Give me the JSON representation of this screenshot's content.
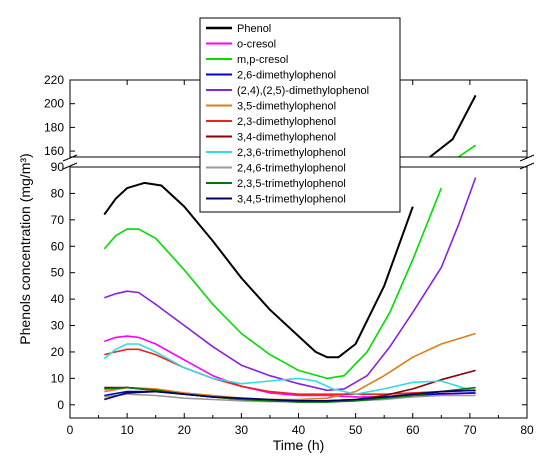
{
  "chart_data": {
    "type": "line",
    "xlabel": "Time (h)",
    "ylabel": "Phenols concentration  (mg/m³)",
    "xlim": [
      0,
      80
    ],
    "x_ticks": [
      "0",
      "10",
      "20",
      "30",
      "40",
      "50",
      "60",
      "70",
      "80"
    ],
    "ylim_lower": [
      -5,
      90
    ],
    "ylim_upper": [
      155,
      220
    ],
    "y_ticks_lower": [
      "0",
      "10",
      "20",
      "30",
      "40",
      "50",
      "60",
      "70",
      "80",
      "90"
    ],
    "y_ticks_upper": [
      "160",
      "180",
      "200",
      "220"
    ],
    "axis_break": true,
    "grid": false,
    "legend_position": "top-center",
    "series": [
      {
        "name": "Phenol",
        "color": "#000000",
        "points": [
          [
            6,
            72
          ],
          [
            8,
            78
          ],
          [
            10,
            82
          ],
          [
            13,
            84
          ],
          [
            16,
            83
          ],
          [
            20,
            75
          ],
          [
            25,
            62
          ],
          [
            30,
            48
          ],
          [
            35,
            36
          ],
          [
            40,
            26
          ],
          [
            43,
            20
          ],
          [
            45,
            18
          ],
          [
            47,
            18
          ],
          [
            50,
            23
          ],
          [
            55,
            45
          ],
          [
            60,
            75
          ],
          [
            63,
            93
          ],
          [
            67,
            170
          ],
          [
            71,
            207
          ]
        ]
      },
      {
        "name": "o-cresol",
        "color": "#ff00ff",
        "points": [
          [
            6,
            24
          ],
          [
            8,
            25.5
          ],
          [
            10,
            26
          ],
          [
            12,
            25.5
          ],
          [
            15,
            23
          ],
          [
            20,
            17
          ],
          [
            25,
            11
          ],
          [
            30,
            7
          ],
          [
            35,
            4.5
          ],
          [
            40,
            3.5
          ],
          [
            45,
            3.5
          ],
          [
            50,
            3
          ],
          [
            55,
            3
          ],
          [
            60,
            3.5
          ],
          [
            65,
            4
          ],
          [
            71,
            4.5
          ]
        ]
      },
      {
        "name": "m,p-cresol",
        "color": "#00dd00",
        "points": [
          [
            6,
            59
          ],
          [
            8,
            64
          ],
          [
            10,
            66.5
          ],
          [
            12,
            66.5
          ],
          [
            15,
            63
          ],
          [
            20,
            51
          ],
          [
            25,
            38
          ],
          [
            30,
            27
          ],
          [
            35,
            19
          ],
          [
            40,
            13
          ],
          [
            45,
            10
          ],
          [
            48,
            11
          ],
          [
            52,
            20
          ],
          [
            56,
            35
          ],
          [
            60,
            55
          ],
          [
            65,
            82
          ],
          [
            68,
            120
          ],
          [
            71,
            165
          ]
        ]
      },
      {
        "name": "2,6-dimethylophenol",
        "color": "#0000cc",
        "points": [
          [
            6,
            3.5
          ],
          [
            10,
            5
          ],
          [
            15,
            5
          ],
          [
            20,
            4
          ],
          [
            25,
            3
          ],
          [
            30,
            2.2
          ],
          [
            35,
            1.8
          ],
          [
            40,
            1.5
          ],
          [
            45,
            1.5
          ],
          [
            50,
            1.8
          ],
          [
            55,
            2.5
          ],
          [
            60,
            3.5
          ],
          [
            65,
            4.2
          ],
          [
            71,
            4.5
          ]
        ]
      },
      {
        "name": "(2,4),(2,5)-dimethylophenol",
        "color": "#8822dd",
        "points": [
          [
            6,
            40.5
          ],
          [
            8,
            42
          ],
          [
            10,
            43
          ],
          [
            12,
            42.5
          ],
          [
            15,
            38
          ],
          [
            20,
            30
          ],
          [
            25,
            22
          ],
          [
            30,
            15
          ],
          [
            35,
            11
          ],
          [
            40,
            8
          ],
          [
            45,
            5.5
          ],
          [
            48,
            6
          ],
          [
            52,
            11
          ],
          [
            56,
            22
          ],
          [
            60,
            35
          ],
          [
            65,
            52
          ],
          [
            68,
            68
          ],
          [
            71,
            86
          ]
        ]
      },
      {
        "name": "3,5-dimethylophenol",
        "color": "#e07b1a",
        "points": [
          [
            6,
            5
          ],
          [
            10,
            6.5
          ],
          [
            15,
            6
          ],
          [
            20,
            4.5
          ],
          [
            25,
            3.5
          ],
          [
            30,
            2.5
          ],
          [
            35,
            2
          ],
          [
            40,
            2
          ],
          [
            45,
            2.5
          ],
          [
            50,
            5
          ],
          [
            55,
            11
          ],
          [
            60,
            18
          ],
          [
            65,
            23
          ],
          [
            71,
            27
          ]
        ]
      },
      {
        "name": "2,3-dimethylophenol",
        "color": "#ee2222",
        "points": [
          [
            6,
            19
          ],
          [
            8,
            20
          ],
          [
            10,
            21
          ],
          [
            12,
            21
          ],
          [
            15,
            19
          ],
          [
            20,
            14
          ],
          [
            25,
            10
          ],
          [
            30,
            7
          ],
          [
            35,
            5
          ],
          [
            40,
            4
          ],
          [
            45,
            4
          ],
          [
            50,
            4
          ],
          [
            55,
            4
          ],
          [
            60,
            4.5
          ],
          [
            65,
            5
          ],
          [
            71,
            5.5
          ]
        ]
      },
      {
        "name": "3,4-dimethylophenol",
        "color": "#880000",
        "points": [
          [
            6,
            6.5
          ],
          [
            10,
            6.5
          ],
          [
            15,
            5.5
          ],
          [
            20,
            4
          ],
          [
            25,
            3
          ],
          [
            30,
            2
          ],
          [
            35,
            1.5
          ],
          [
            40,
            1.5
          ],
          [
            45,
            1.5
          ],
          [
            50,
            2
          ],
          [
            55,
            3.5
          ],
          [
            60,
            6
          ],
          [
            65,
            9.5
          ],
          [
            71,
            13
          ]
        ]
      },
      {
        "name": "2,3,6-trimethylophenol",
        "color": "#33dddd",
        "points": [
          [
            6,
            17.5
          ],
          [
            8,
            21
          ],
          [
            10,
            23
          ],
          [
            12,
            23
          ],
          [
            15,
            20
          ],
          [
            20,
            14
          ],
          [
            25,
            10
          ],
          [
            30,
            8
          ],
          [
            35,
            9
          ],
          [
            40,
            10
          ],
          [
            43,
            9
          ],
          [
            46,
            6
          ],
          [
            50,
            4
          ],
          [
            55,
            6
          ],
          [
            60,
            8.5
          ],
          [
            65,
            9
          ],
          [
            68,
            7
          ],
          [
            71,
            5
          ]
        ]
      },
      {
        "name": "2,4,6-trimethylophenol",
        "color": "#999999",
        "points": [
          [
            6,
            3
          ],
          [
            10,
            4
          ],
          [
            15,
            3.5
          ],
          [
            20,
            2.5
          ],
          [
            25,
            2
          ],
          [
            30,
            1.5
          ],
          [
            35,
            1.2
          ],
          [
            40,
            1.2
          ],
          [
            45,
            1.2
          ],
          [
            50,
            1.5
          ],
          [
            55,
            2
          ],
          [
            60,
            3
          ],
          [
            65,
            3.5
          ],
          [
            71,
            3.5
          ]
        ]
      },
      {
        "name": "2,3,5-trimethylophenol",
        "color": "#007700",
        "points": [
          [
            6,
            6
          ],
          [
            10,
            6.5
          ],
          [
            15,
            5.5
          ],
          [
            20,
            4
          ],
          [
            25,
            3
          ],
          [
            30,
            2
          ],
          [
            35,
            1.5
          ],
          [
            40,
            1
          ],
          [
            45,
            1
          ],
          [
            50,
            1.5
          ],
          [
            55,
            2.5
          ],
          [
            60,
            3.5
          ],
          [
            65,
            5
          ],
          [
            71,
            6.5
          ]
        ]
      },
      {
        "name": "3,4,5-trimethylophenol",
        "color": "#000066",
        "points": [
          [
            6,
            2
          ],
          [
            10,
            4.5
          ],
          [
            15,
            5
          ],
          [
            20,
            4
          ],
          [
            25,
            3
          ],
          [
            30,
            2.5
          ],
          [
            35,
            2
          ],
          [
            40,
            1.5
          ],
          [
            45,
            1.5
          ],
          [
            50,
            2
          ],
          [
            55,
            3
          ],
          [
            60,
            4
          ],
          [
            65,
            5
          ],
          [
            71,
            5.5
          ]
        ]
      }
    ]
  }
}
